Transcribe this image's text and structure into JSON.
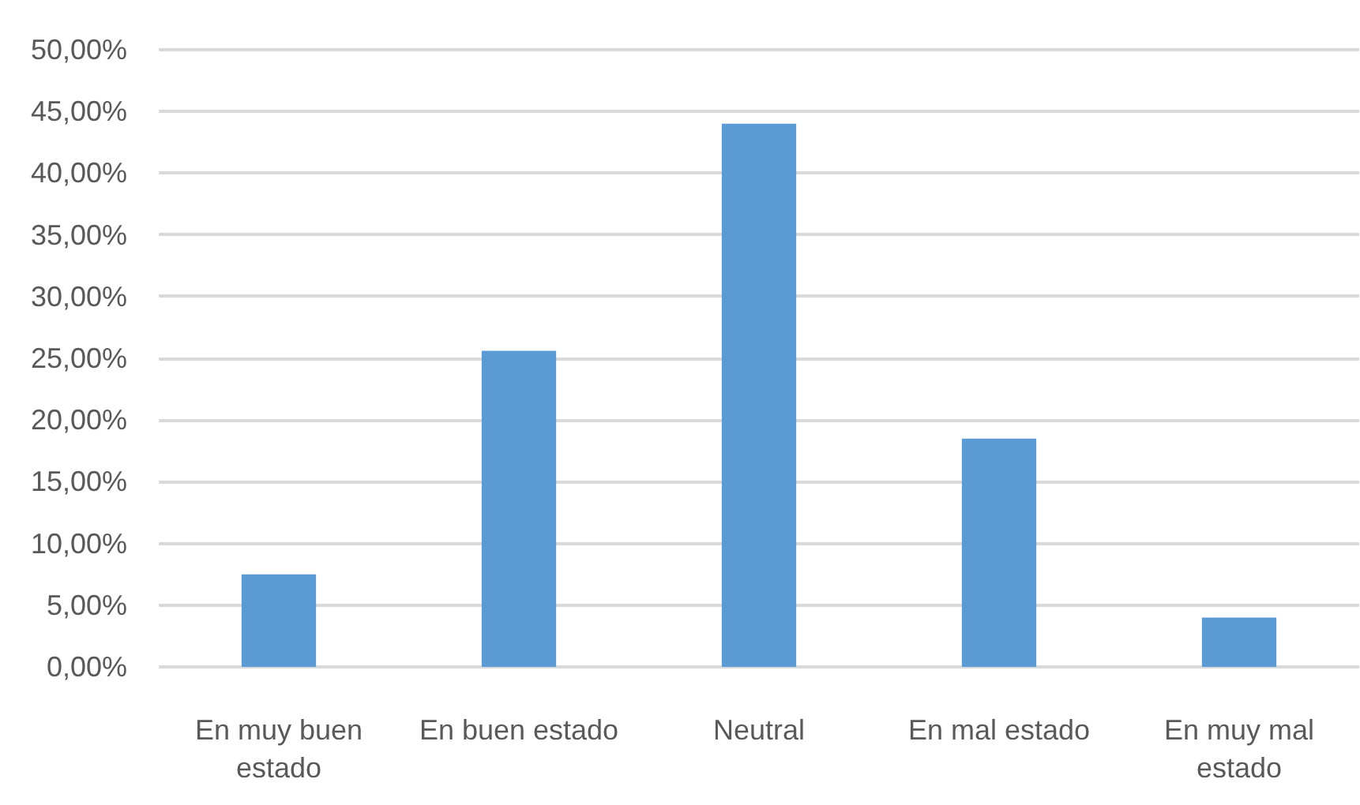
{
  "chart_data": {
    "type": "bar",
    "categories": [
      "En muy buen estado",
      "En buen estado",
      "Neutral",
      "En mal estado",
      "En muy mal estado"
    ],
    "values": [
      7.5,
      25.6,
      44.0,
      18.5,
      4.0
    ],
    "color": "#5b9bd5",
    "ylim": [
      0,
      50
    ],
    "yticks": [
      {
        "value": 0,
        "label": "0,00%"
      },
      {
        "value": 5,
        "label": "5,00%"
      },
      {
        "value": 10,
        "label": "10,00%"
      },
      {
        "value": 15,
        "label": "15,00%"
      },
      {
        "value": 20,
        "label": "20,00%"
      },
      {
        "value": 25,
        "label": "25,00%"
      },
      {
        "value": 30,
        "label": "30,00%"
      },
      {
        "value": 35,
        "label": "35,00%"
      },
      {
        "value": 40,
        "label": "40,00%"
      },
      {
        "value": 45,
        "label": "45,00%"
      },
      {
        "value": 50,
        "label": "50,00%"
      }
    ],
    "grid": "y"
  }
}
